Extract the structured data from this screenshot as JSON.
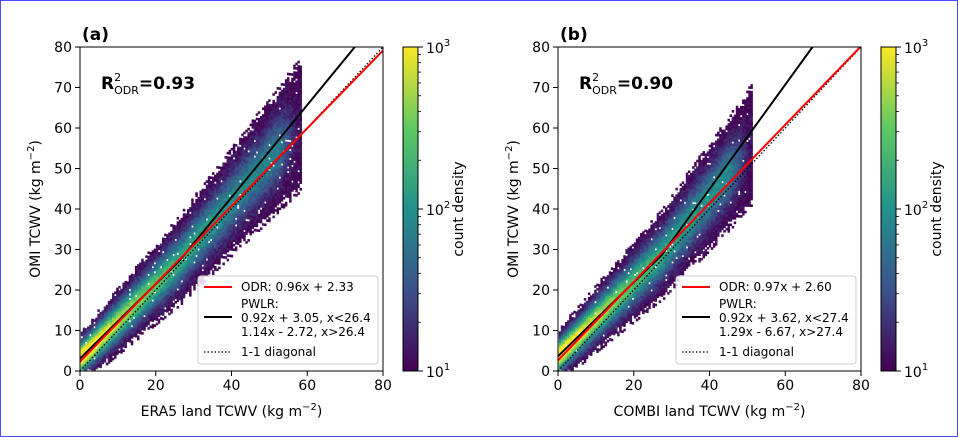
{
  "colorbar": {
    "label": "count density",
    "ticks": [
      {
        "base": "10",
        "exp": "3"
      },
      {
        "base": "10",
        "exp": "2"
      },
      {
        "base": "10",
        "exp": "1"
      }
    ],
    "range": [
      10,
      1000
    ],
    "scale": "log",
    "colormap": [
      "#440154",
      "#3b528b",
      "#21918c",
      "#5ec962",
      "#fde725"
    ]
  },
  "chart_data": [
    {
      "type": "scatter",
      "panel_label": "(a)",
      "r2_base": "R",
      "r2_sup": "2",
      "r2_sub": "ODR",
      "r2_value": "=0.93",
      "xlabel": {
        "base": "ERA5 land TCWV (kg m",
        "sup": "−2",
        "end": ")"
      },
      "ylabel": {
        "base": "OMI TCWV (kg m",
        "sup": "−2",
        "end": ")"
      },
      "xlim": [
        0,
        80
      ],
      "ylim": [
        0,
        80
      ],
      "xticks": [
        0,
        20,
        40,
        60,
        80
      ],
      "yticks": [
        0,
        10,
        20,
        30,
        40,
        50,
        60,
        70,
        80
      ],
      "density_x_range": [
        0,
        58
      ],
      "lines": {
        "odr": {
          "slope": 0.96,
          "intercept": 2.33,
          "color": "#ff0000"
        },
        "pwlr": {
          "slope1": 0.92,
          "intercept1": 3.05,
          "slope2": 1.14,
          "intercept2": -2.72,
          "break": 26.4,
          "color": "#000000"
        },
        "diagonal": {
          "slope": 1,
          "intercept": 0,
          "color": "#000000",
          "style": "dotted"
        }
      },
      "legend": {
        "placement": "lower-right",
        "odr": "ODR: 0.96x + 2.33",
        "pwlr_title": "PWLR:",
        "pwlr_line1": "0.92x + 3.05, x<26.4",
        "pwlr_line2": "1.14x - 2.72, x>26.4",
        "diagonal": "1-1 diagonal"
      }
    },
    {
      "type": "scatter",
      "panel_label": "(b)",
      "r2_base": "R",
      "r2_sup": "2",
      "r2_sub": "ODR",
      "r2_value": "=0.90",
      "xlabel": {
        "base": "COMBI land TCWV (kg m",
        "sup": "−2",
        "end": ")"
      },
      "ylabel": {
        "base": "OMI TCWV (kg m",
        "sup": "−2",
        "end": ")"
      },
      "xlim": [
        0,
        80
      ],
      "ylim": [
        0,
        80
      ],
      "xticks": [
        0,
        20,
        40,
        60,
        80
      ],
      "yticks": [
        0,
        10,
        20,
        30,
        40,
        50,
        60,
        70,
        80
      ],
      "density_x_range": [
        0,
        51
      ],
      "lines": {
        "odr": {
          "slope": 0.97,
          "intercept": 2.6,
          "color": "#ff0000"
        },
        "pwlr": {
          "slope1": 0.92,
          "intercept1": 3.62,
          "slope2": 1.29,
          "intercept2": -6.67,
          "break": 27.4,
          "color": "#000000"
        },
        "diagonal": {
          "slope": 1,
          "intercept": 0,
          "color": "#000000",
          "style": "dotted"
        }
      },
      "legend": {
        "placement": "lower-right",
        "odr": "ODR: 0.97x + 2.60",
        "pwlr_title": "PWLR:",
        "pwlr_line1": "0.92x + 3.62, x<27.4",
        "pwlr_line2": "1.29x - 6.67, x>27.4",
        "diagonal": "1-1 diagonal"
      }
    }
  ]
}
